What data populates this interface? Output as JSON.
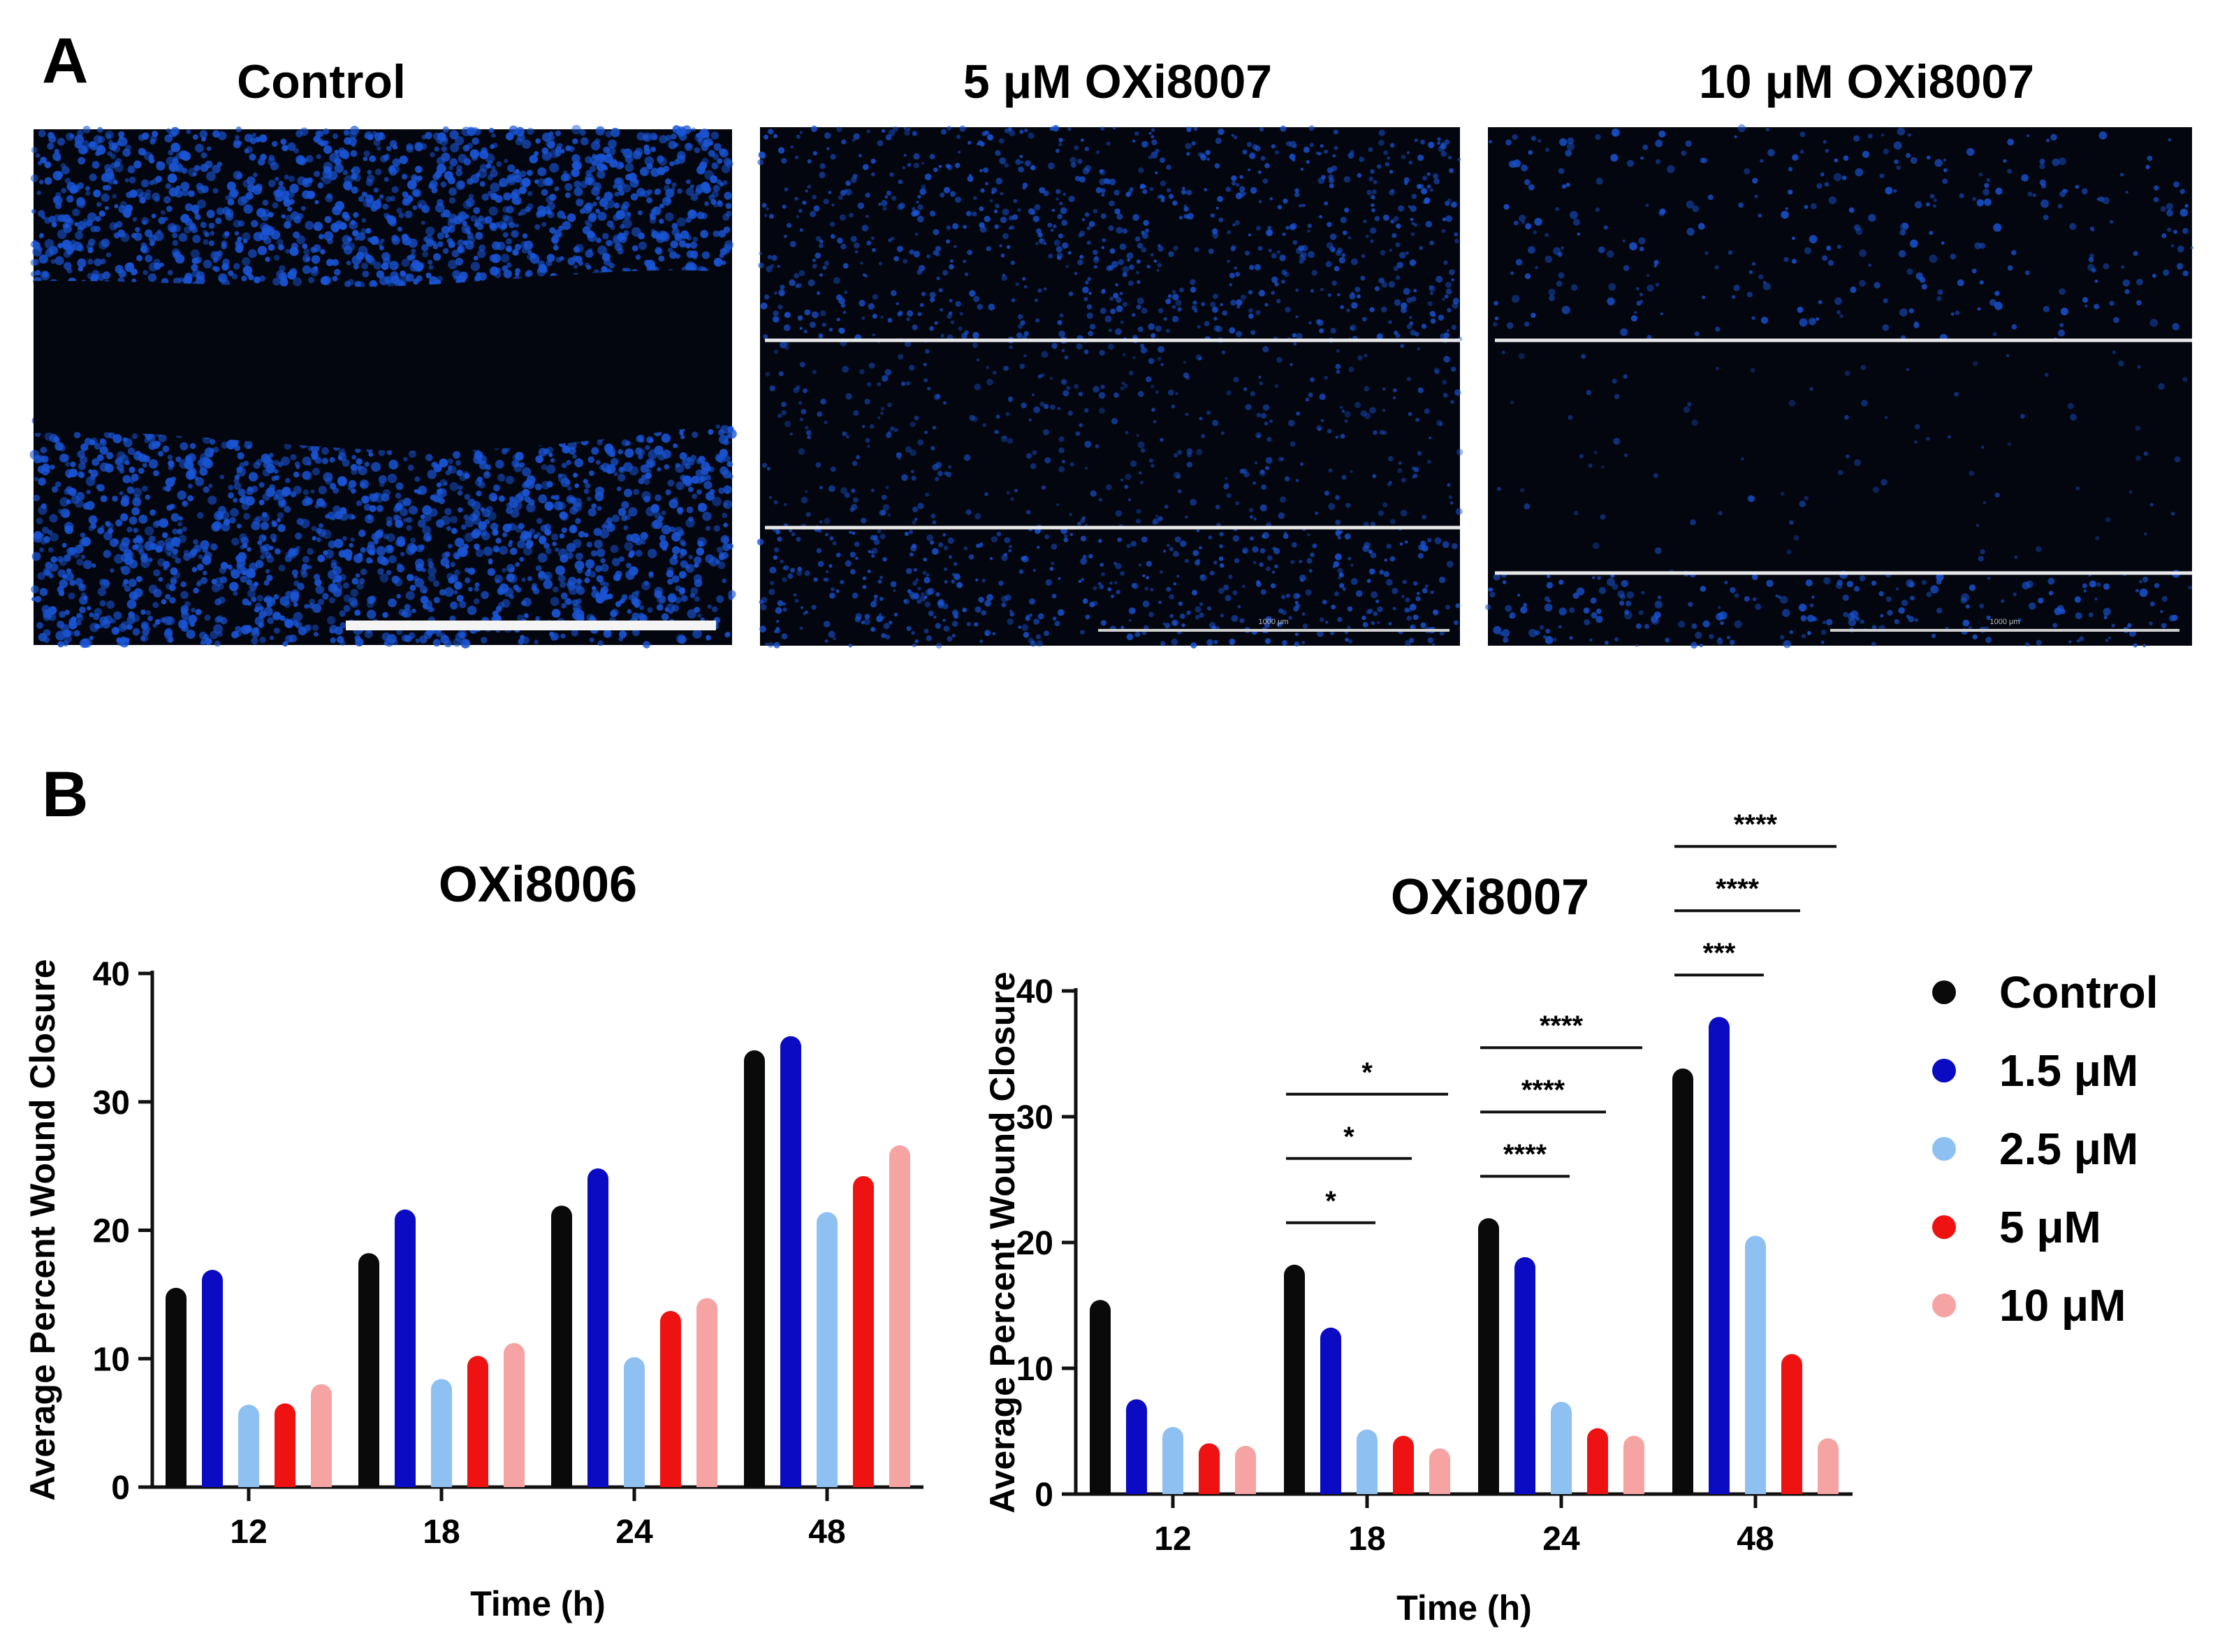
{
  "panel_a": {
    "letter": "A",
    "images": [
      {
        "title": "Control",
        "scale_bar": ""
      },
      {
        "title": "5 μM OXi8007",
        "scale_bar": "1000 μm"
      },
      {
        "title": "10 μM OXi8007",
        "scale_bar": "1000 μm"
      }
    ]
  },
  "panel_b": {
    "letter": "B"
  },
  "colors": {
    "Control": "#0a0a0a",
    "1.5 μM": "#0b0bc4",
    "2.5 μM": "#8fc0f2",
    "5 μM": "#ef1212",
    "10 μM": "#f6a3a3",
    "fluorescence": "#1a55d6"
  },
  "legend": {
    "entries": [
      "Control",
      "1.5 μM",
      "2.5 μM",
      "5 μM",
      "10 μM"
    ],
    "placement": "right"
  },
  "chart_data": [
    {
      "type": "bar",
      "title": "OXi8006",
      "xlabel": "Time (h)",
      "ylabel": "Average Percent Wound Closure",
      "categories": [
        "12",
        "18",
        "24",
        "48"
      ],
      "ylim": [
        0,
        40
      ],
      "yticks": [
        0,
        10,
        20,
        30,
        40
      ],
      "series": [
        {
          "name": "Control",
          "values": [
            14.7,
            17.4,
            21.1,
            33.2
          ]
        },
        {
          "name": "1.5 μM",
          "values": [
            16.1,
            20.8,
            24.0,
            34.3
          ]
        },
        {
          "name": "2.5 μM",
          "values": [
            5.6,
            7.6,
            9.3,
            20.6
          ]
        },
        {
          "name": "5 μM",
          "values": [
            5.7,
            9.4,
            12.9,
            23.4
          ]
        },
        {
          "name": "10 μM",
          "values": [
            7.2,
            10.4,
            13.9,
            25.8
          ]
        }
      ],
      "annotations": []
    },
    {
      "type": "bar",
      "title": "OXi8007",
      "xlabel": "Time (h)",
      "ylabel": "Average Percent Wound Closure",
      "categories": [
        "12",
        "18",
        "24",
        "48"
      ],
      "ylim": [
        0,
        40
      ],
      "yticks": [
        0,
        10,
        20,
        30,
        40
      ],
      "series": [
        {
          "name": "Control",
          "values": [
            14.6,
            17.4,
            21.1,
            33.0
          ]
        },
        {
          "name": "1.5 μM",
          "values": [
            6.7,
            12.4,
            18.0,
            37.1
          ]
        },
        {
          "name": "2.5 μM",
          "values": [
            4.5,
            4.3,
            6.5,
            19.7
          ]
        },
        {
          "name": "5 μM",
          "values": [
            3.2,
            3.8,
            4.4,
            10.3
          ]
        },
        {
          "name": "10 μM",
          "values": [
            3.0,
            2.8,
            3.8,
            3.6
          ]
        }
      ],
      "annotations": [
        {
          "label": "*",
          "category": "18",
          "from": "Control",
          "to": "2.5 μM"
        },
        {
          "label": "*",
          "category": "18",
          "from": "Control",
          "to": "5 μM"
        },
        {
          "label": "*",
          "category": "18",
          "from": "Control",
          "to": "10 μM"
        },
        {
          "label": "****",
          "category": "24",
          "from": "Control",
          "to": "2.5 μM"
        },
        {
          "label": "****",
          "category": "24",
          "from": "Control",
          "to": "5 μM"
        },
        {
          "label": "****",
          "category": "24",
          "from": "Control",
          "to": "10 μM"
        },
        {
          "label": "***",
          "category": "48",
          "from": "Control",
          "to": "2.5 μM"
        },
        {
          "label": "****",
          "category": "48",
          "from": "Control",
          "to": "5 μM"
        },
        {
          "label": "****",
          "category": "48",
          "from": "Control",
          "to": "10 μM"
        }
      ]
    }
  ]
}
